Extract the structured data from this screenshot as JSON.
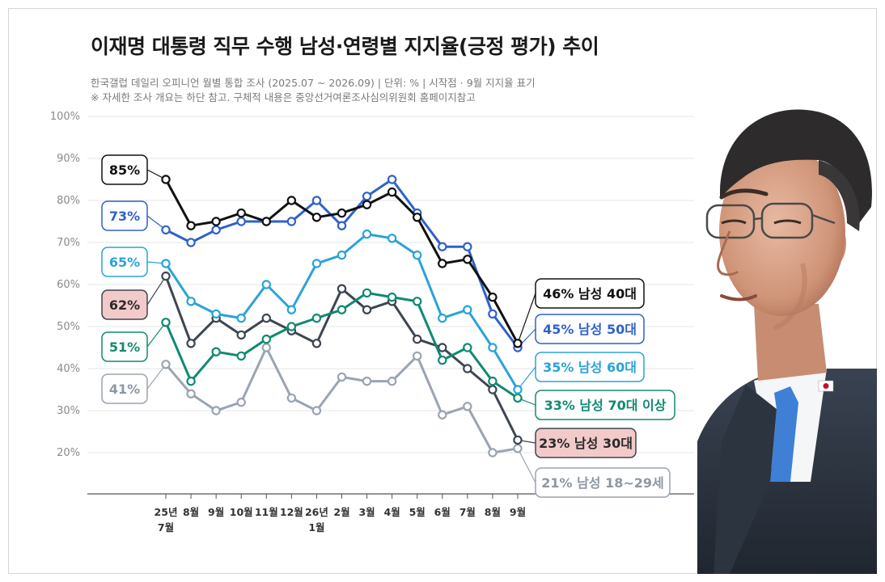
{
  "title": "이재명 대통령 직무 수행 남성·연령별 지지율(긍정 평가) 추이",
  "subtitle_line1": "한국갤럽 데일리 오피니언 월별 통합 조사 (2025.07 ~ 2026.09) | 단위: % | 시작점 · 9월 지지율 표기",
  "subtitle_line2": "※ 자세한 조사 개요는 하단 참고. 구체적 내용은 중앙선거여론조사심의위원회 홈페이지참고",
  "colors": {
    "m40": "#111111",
    "m50": "#2f62c9",
    "m60": "#2aa3d8",
    "m70": "#118a72",
    "m30": "#3d4652",
    "m18": "#9aa4b1",
    "m30_box_fill": "#f3caca"
  },
  "chart_data": {
    "type": "line",
    "unit": "%",
    "ylim": [
      10,
      100
    ],
    "yticks": [
      "100%",
      "90%",
      "80%",
      "70%",
      "60%",
      "50%",
      "40%",
      "30%",
      "20%"
    ],
    "ytick_values": [
      100,
      90,
      80,
      70,
      60,
      50,
      40,
      30,
      20
    ],
    "grid": true,
    "categories": [
      [
        "25년",
        "7월"
      ],
      [
        "8월"
      ],
      [
        "9월"
      ],
      [
        "10월"
      ],
      [
        "11월"
      ],
      [
        "12월"
      ],
      [
        "26년",
        "1월"
      ],
      [
        "2월"
      ],
      [
        "3월"
      ],
      [
        "4월"
      ],
      [
        "5월"
      ],
      [
        "6월"
      ],
      [
        "7월"
      ],
      [
        "8월"
      ],
      [
        "9월"
      ]
    ],
    "series": [
      {
        "key": "m40",
        "name": "남성 40대",
        "start_label": "85%",
        "end_label": "46% 남성 40대",
        "values": [
          85,
          74,
          75,
          77,
          75,
          80,
          76,
          77,
          79,
          82,
          76,
          65,
          66,
          57,
          46
        ]
      },
      {
        "key": "m50",
        "name": "남성 50대",
        "start_label": "73%",
        "end_label": "45% 남성 50대",
        "values": [
          73,
          70,
          73,
          75,
          75,
          75,
          80,
          74,
          81,
          85,
          77,
          69,
          69,
          53,
          45
        ]
      },
      {
        "key": "m60",
        "name": "남성 60대",
        "start_label": "65%",
        "end_label": "35% 남성 60대",
        "values": [
          65,
          56,
          53,
          52,
          60,
          54,
          65,
          67,
          72,
          71,
          67,
          52,
          54,
          45,
          35
        ]
      },
      {
        "key": "m70",
        "name": "남성 70대 이상",
        "start_label": "51%",
        "end_label": "33% 남성 70대 이상",
        "values": [
          51,
          37,
          44,
          43,
          47,
          50,
          52,
          54,
          58,
          57,
          56,
          42,
          45,
          37,
          33
        ]
      },
      {
        "key": "m30",
        "name": "남성 30대",
        "start_label": "62%",
        "end_label": "23% 남성 30대",
        "values": [
          62,
          46,
          52,
          48,
          52,
          49,
          46,
          59,
          54,
          56,
          47,
          45,
          40,
          35,
          23
        ]
      },
      {
        "key": "m18",
        "name": "남성 18~29세",
        "start_label": "41%",
        "end_label": "21% 남성 18~29세",
        "values": [
          41,
          34,
          30,
          32,
          45,
          33,
          30,
          38,
          37,
          37,
          43,
          29,
          31,
          20,
          21
        ]
      }
    ]
  }
}
